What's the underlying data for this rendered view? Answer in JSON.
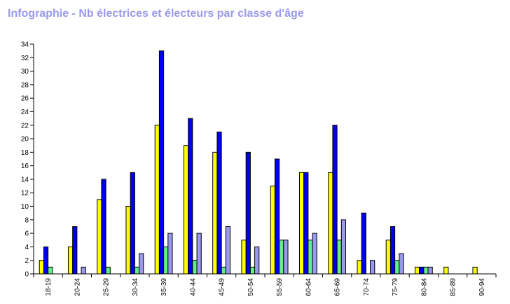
{
  "chart_data": {
    "type": "bar",
    "title": "Infographie - Nb électrices et électeurs par classe d'âge",
    "xlabel": "",
    "ylabel": "",
    "ylim": [
      0,
      34
    ],
    "yticks": [
      0,
      2,
      4,
      6,
      8,
      10,
      12,
      14,
      16,
      18,
      20,
      22,
      24,
      26,
      28,
      30,
      32,
      34
    ],
    "grid": false,
    "categories": [
      "18-19",
      "20-24",
      "25-29",
      "30-34",
      "35-39",
      "40-44",
      "45-49",
      "50-54",
      "55-59",
      "60-64",
      "65-69",
      "70-74",
      "75-79",
      "80-84",
      "85-89",
      "90-94"
    ],
    "series": [
      {
        "color": "#ffff00",
        "values": [
          2,
          4,
          11,
          10,
          22,
          19,
          18,
          5,
          13,
          15,
          15,
          2,
          5,
          1,
          1,
          1
        ]
      },
      {
        "color": "#0000ee",
        "values": [
          4,
          7,
          14,
          15,
          33,
          23,
          21,
          18,
          17,
          15,
          22,
          9,
          7,
          1,
          0,
          0
        ]
      },
      {
        "color": "#66ee88",
        "values": [
          1,
          0,
          1,
          1,
          4,
          2,
          1,
          1,
          5,
          5,
          5,
          0,
          2,
          1,
          0,
          0
        ]
      },
      {
        "color": "#9999ee",
        "values": [
          0,
          1,
          0,
          3,
          6,
          6,
          7,
          4,
          5,
          6,
          8,
          2,
          3,
          1,
          0,
          0
        ]
      }
    ]
  }
}
